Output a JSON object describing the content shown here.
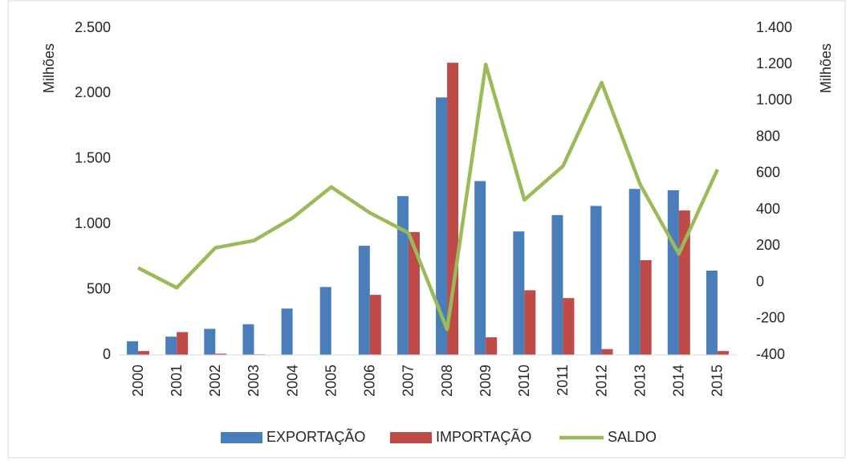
{
  "chart_data": {
    "type": "bar",
    "categories": [
      "2000",
      "2001",
      "2002",
      "2003",
      "2004",
      "2005",
      "2006",
      "2007",
      "2008",
      "2009",
      "2010",
      "2011",
      "2012",
      "2013",
      "2014",
      "2015"
    ],
    "series": [
      {
        "name": "EXPORTAÇÃO",
        "color": "#4a7ebb",
        "type": "bar",
        "values": [
          105,
          140,
          200,
          235,
          355,
          520,
          835,
          1215,
          1970,
          1330,
          945,
          1070,
          1140,
          1270,
          1260,
          645
        ]
      },
      {
        "name": "IMPORTAÇÃO",
        "color": "#be4b48",
        "type": "bar",
        "values": [
          30,
          175,
          10,
          5,
          0,
          0,
          460,
          940,
          2235,
          135,
          495,
          435,
          45,
          725,
          1105,
          30
        ]
      },
      {
        "name": "SALDO",
        "color": "#9bbb59",
        "type": "line",
        "axis": "y2",
        "values": [
          80,
          -30,
          190,
          230,
          355,
          525,
          383,
          272,
          -260,
          1200,
          454,
          640,
          1100,
          538,
          157,
          622
        ]
      }
    ],
    "ylabel": "Milhões",
    "y2label": "Milhões",
    "ylim": [
      0,
      2500
    ],
    "yticks": [
      0,
      500,
      {
        "value": 1000,
        "label": "1.000"
      },
      {
        "value": 1500,
        "label": "1.500"
      },
      {
        "value": 2000,
        "label": "2.000"
      },
      {
        "value": 2500,
        "label": "2.500"
      }
    ],
    "y2lim": [
      -400,
      1400
    ],
    "y2ticks": [
      -400,
      -200,
      0,
      200,
      400,
      600,
      800,
      {
        "value": 1000,
        "label": "1.000"
      },
      {
        "value": 1200,
        "label": "1.200"
      },
      {
        "value": 1400,
        "label": "1.400"
      }
    ],
    "grid": false,
    "legend": "bottom"
  }
}
